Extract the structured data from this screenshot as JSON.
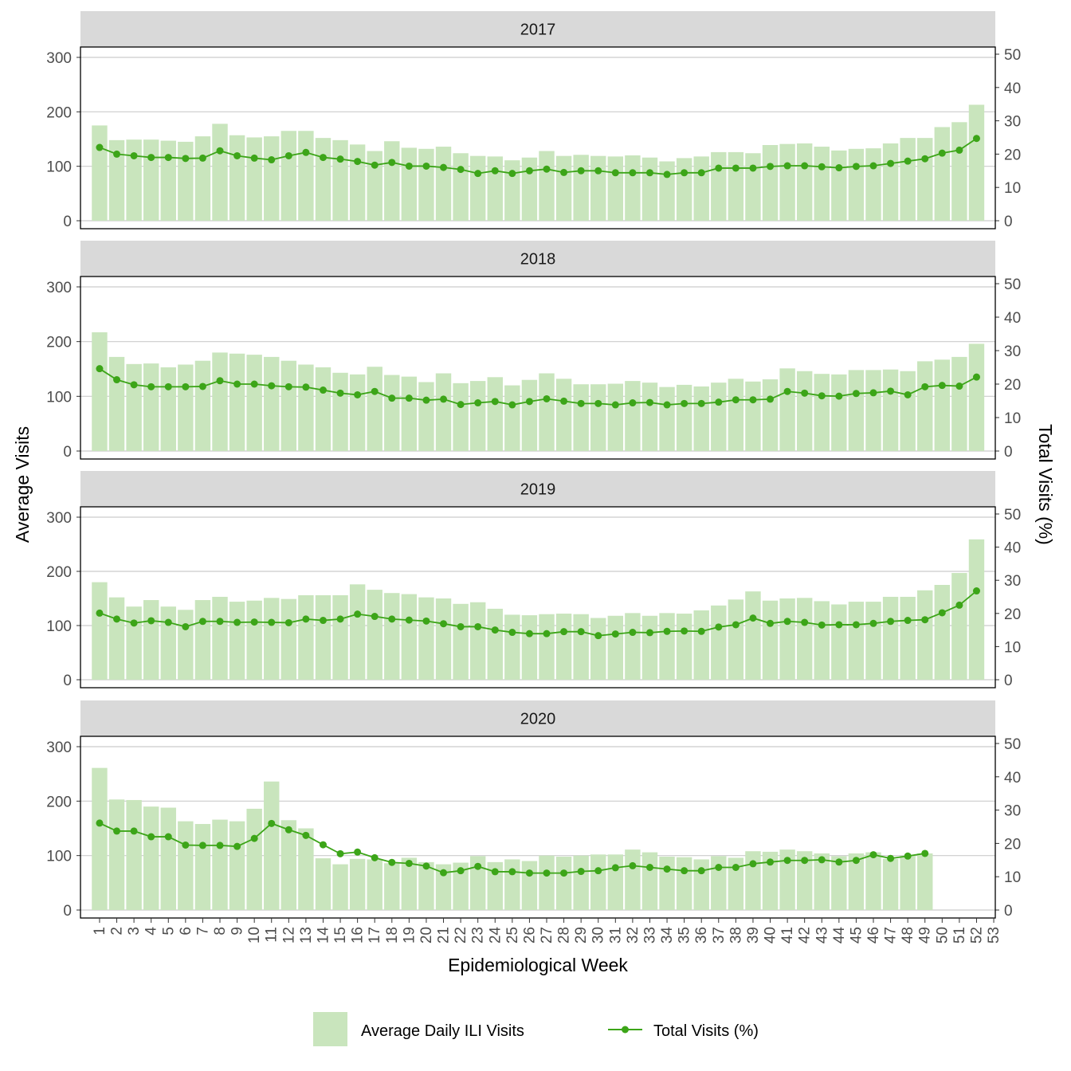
{
  "chart_data": {
    "type": "bar",
    "xlabel": "Epidemiological Week",
    "ylabel": "Average Visits",
    "ylabel_right": "Total Visits (%)",
    "x_ticks": [
      "1",
      "2",
      "3",
      "4",
      "5",
      "6",
      "7",
      "8",
      "9",
      "10",
      "11",
      "12",
      "13",
      "14",
      "15",
      "16",
      "17",
      "18",
      "19",
      "20",
      "21",
      "22",
      "23",
      "24",
      "25",
      "26",
      "27",
      "28",
      "29",
      "30",
      "31",
      "32",
      "33",
      "34",
      "35",
      "36",
      "37",
      "38",
      "39",
      "40",
      "41",
      "42",
      "43",
      "44",
      "45",
      "46",
      "47",
      "48",
      "49",
      "50",
      "51",
      "52",
      "53"
    ],
    "ylim": [
      0,
      300
    ],
    "y_ticks": [
      0,
      100,
      200,
      300
    ],
    "ylim_right": [
      0,
      50
    ],
    "y_ticks_right": [
      0,
      10,
      20,
      30,
      40,
      50
    ],
    "grid": true,
    "legend_position": "bottom",
    "colors": {
      "bar": "#c9e5bd",
      "line": "#3ca518",
      "strip": "#d9d9d9"
    },
    "series_names": {
      "bar": "Average Daily ILI Visits",
      "line": "Total Visits (%)"
    },
    "panels": [
      {
        "label": "2017",
        "bars": [
          175,
          148,
          149,
          149,
          147,
          145,
          155,
          178,
          157,
          153,
          155,
          165,
          165,
          152,
          148,
          140,
          128,
          146,
          134,
          132,
          136,
          124,
          119,
          118,
          111,
          116,
          128,
          119,
          121,
          119,
          118,
          120,
          116,
          109,
          115,
          118,
          126,
          126,
          124,
          139,
          141,
          142,
          136,
          129,
          132,
          133,
          142,
          152,
          152,
          172,
          181,
          213
        ],
        "line": [
          22,
          20,
          19.5,
          19,
          19,
          18.7,
          18.8,
          21,
          19.5,
          18.8,
          18.3,
          19.5,
          20.5,
          19,
          18.5,
          17.8,
          16.7,
          17.5,
          16.4,
          16.4,
          16,
          15.4,
          14.2,
          15,
          14.2,
          15,
          15.5,
          14.5,
          15,
          15,
          14.4,
          14.4,
          14.4,
          13.9,
          14.4,
          14.4,
          15.8,
          15.8,
          15.8,
          16.3,
          16.5,
          16.5,
          16.2,
          15.9,
          16.3,
          16.5,
          17.2,
          17.9,
          18.6,
          20.3,
          21.2,
          24.7
        ]
      },
      {
        "label": "2018",
        "bars": [
          217,
          172,
          159,
          160,
          153,
          158,
          165,
          180,
          178,
          176,
          172,
          165,
          158,
          153,
          143,
          140,
          154,
          139,
          136,
          126,
          142,
          124,
          128,
          135,
          120,
          130,
          142,
          132,
          122,
          122,
          123,
          128,
          125,
          117,
          121,
          118,
          125,
          132,
          127,
          131,
          151,
          146,
          141,
          140,
          148,
          148,
          149,
          146,
          164,
          167,
          172,
          196
        ],
        "line": [
          24.6,
          21.3,
          19.8,
          19.2,
          19.2,
          19.2,
          19.3,
          21,
          20,
          20,
          19.5,
          19.2,
          19.1,
          18.2,
          17.3,
          16.8,
          17.8,
          15.8,
          15.8,
          15.2,
          15.5,
          13.9,
          14.4,
          14.8,
          13.8,
          14.8,
          15.6,
          14.9,
          14.2,
          14.2,
          13.8,
          14.4,
          14.5,
          13.8,
          14.2,
          14.2,
          14.6,
          15.3,
          15.3,
          15.5,
          17.8,
          17.3,
          16.5,
          16.4,
          17.2,
          17.4,
          17.9,
          16.8,
          19.2,
          19.6,
          19.4,
          22.1
        ]
      },
      {
        "label": "2019",
        "bars": [
          180,
          152,
          135,
          147,
          135,
          129,
          147,
          153,
          144,
          146,
          151,
          149,
          156,
          156,
          156,
          176,
          166,
          160,
          158,
          152,
          150,
          140,
          143,
          131,
          120,
          119,
          121,
          122,
          121,
          114,
          118,
          123,
          118,
          123,
          122,
          128,
          137,
          148,
          163,
          146,
          150,
          151,
          145,
          139,
          144,
          144,
          153,
          153,
          165,
          175,
          197,
          259
        ],
        "line": [
          20.1,
          18.3,
          17.1,
          17.8,
          17.3,
          16,
          17.6,
          17.6,
          17.3,
          17.4,
          17.3,
          17.2,
          18.3,
          17.9,
          18.3,
          19.8,
          19.1,
          18.3,
          18,
          17.7,
          16.9,
          16,
          16,
          15,
          14.3,
          13.9,
          13.9,
          14.5,
          14.5,
          13.3,
          13.8,
          14.3,
          14.2,
          14.6,
          14.7,
          14.6,
          15.9,
          16.6,
          18.6,
          17,
          17.6,
          17.3,
          16.5,
          16.6,
          16.6,
          17,
          17.6,
          17.9,
          18.1,
          20.2,
          22.5,
          26.8
        ]
      },
      {
        "label": "2020",
        "bars": [
          261,
          203,
          202,
          190,
          188,
          163,
          158,
          166,
          163,
          186,
          236,
          165,
          150,
          95,
          84,
          94,
          93,
          86,
          96,
          88,
          84,
          87,
          99,
          88,
          93,
          90,
          100,
          98,
          100,
          102,
          102,
          111,
          106,
          98,
          97,
          93,
          99,
          96,
          108,
          107,
          111,
          108,
          104,
          99,
          104,
          106,
          94,
          100,
          104
        ],
        "line": [
          26.1,
          23.7,
          23.7,
          22,
          22,
          19.5,
          19.4,
          19.4,
          19.1,
          21.5,
          26,
          24.1,
          22.4,
          19.6,
          16.9,
          17.4,
          15.7,
          14.3,
          14,
          13.2,
          11.2,
          11.8,
          13.1,
          11.5,
          11.5,
          11.1,
          11.1,
          11.1,
          11.6,
          11.8,
          12.7,
          13.3,
          12.8,
          12.3,
          11.8,
          11.8,
          12.8,
          12.8,
          13.9,
          14.4,
          14.9,
          14.9,
          15.1,
          14.4,
          14.9,
          16.6,
          15.5,
          16.2,
          17
        ]
      }
    ]
  }
}
